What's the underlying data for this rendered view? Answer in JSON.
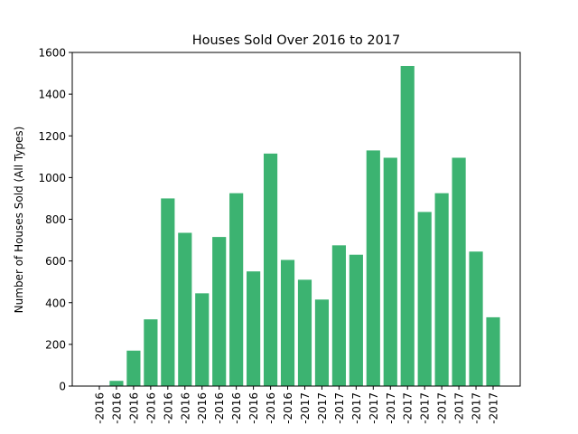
{
  "chart_data": {
    "type": "bar",
    "title": "Houses Sold Over 2016 to 2017",
    "xlabel": "",
    "ylabel": "Number of Houses Sold (All Types)",
    "categories": [
      "-2016",
      "-2016",
      "-2016",
      "-2016",
      "-2016",
      "-2016",
      "-2016",
      "-2016",
      "-2016",
      "-2016",
      "-2016",
      "-2016",
      "-2017",
      "-2017",
      "-2017",
      "-2017",
      "-2017",
      "-2017",
      "-2017",
      "-2017",
      "-2017",
      "-2017",
      "-2017",
      "-2017"
    ],
    "values": [
      0,
      25,
      170,
      320,
      900,
      735,
      445,
      715,
      925,
      550,
      1115,
      605,
      510,
      415,
      675,
      630,
      1130,
      1095,
      1535,
      835,
      925,
      1095,
      645,
      330
    ],
    "ylim": [
      0,
      1600
    ],
    "yticks": [
      0,
      200,
      400,
      600,
      800,
      1000,
      1200,
      1400,
      1600
    ],
    "bar_color": "#3cb371",
    "grid": false,
    "legend": "none"
  }
}
